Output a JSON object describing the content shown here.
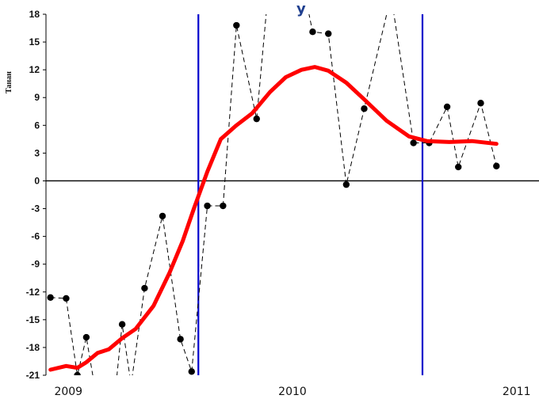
{
  "chart_data": {
    "type": "line",
    "title_fragment": "y",
    "ylabel": "Танан",
    "ylim": [
      -21,
      18
    ],
    "yticks": [
      18,
      15,
      12,
      9,
      6,
      3,
      0,
      -3,
      -6,
      -9,
      -12,
      -15,
      -18,
      -21
    ],
    "ytick_labels": [
      "18",
      "15",
      "12",
      "9",
      "6",
      "3",
      "0",
      "-3",
      "-6",
      "-9",
      "-12",
      "-15",
      "-18",
      "-21"
    ],
    "xlim": [
      2008.9,
      2011.1
    ],
    "xtick_labels": [
      {
        "value": 2009,
        "label": "2009"
      },
      {
        "value": 2010,
        "label": "2010"
      },
      {
        "value": 2011,
        "label": "2011"
      }
    ],
    "vertical_lines": [
      2009.58,
      2010.58
    ],
    "colors": {
      "trend": "#ff0000",
      "vlines": "#0000cc",
      "series": "#000000"
    },
    "series": [
      {
        "style": "dashed-markers",
        "points": [
          [
            2008.92,
            -12.6
          ],
          [
            2008.99,
            -12.7
          ],
          [
            2009.04,
            -21.0
          ],
          [
            2009.08,
            -16.9
          ],
          [
            2009.13,
            -24.0
          ],
          [
            2009.2,
            -25.0
          ],
          [
            2009.24,
            -15.5
          ],
          [
            2009.28,
            -22.0
          ],
          [
            2009.34,
            -11.6
          ],
          [
            2009.42,
            -3.8
          ],
          [
            2009.5,
            -17.1
          ],
          [
            2009.55,
            -20.6
          ],
          [
            2009.62,
            -2.7
          ],
          [
            2009.69,
            -2.7
          ],
          [
            2009.75,
            16.8
          ],
          [
            2009.84,
            6.7
          ],
          [
            2009.89,
            20.0
          ],
          [
            2010.04,
            22.0
          ],
          [
            2010.09,
            16.1
          ],
          [
            2010.16,
            15.9
          ],
          [
            2010.24,
            -0.4
          ],
          [
            2010.32,
            7.8
          ],
          [
            2010.44,
            20.0
          ],
          [
            2010.54,
            4.1
          ],
          [
            2010.61,
            4.1
          ],
          [
            2010.69,
            8.0
          ],
          [
            2010.74,
            1.5
          ],
          [
            2010.84,
            8.4
          ],
          [
            2010.91,
            1.6
          ]
        ]
      },
      {
        "style": "trend",
        "points": [
          [
            2008.92,
            -20.4
          ],
          [
            2008.99,
            -20.0
          ],
          [
            2009.04,
            -20.2
          ],
          [
            2009.08,
            -19.6
          ],
          [
            2009.13,
            -18.6
          ],
          [
            2009.18,
            -18.2
          ],
          [
            2009.24,
            -17.0
          ],
          [
            2009.3,
            -16.0
          ],
          [
            2009.38,
            -13.5
          ],
          [
            2009.45,
            -10.0
          ],
          [
            2009.51,
            -6.5
          ],
          [
            2009.56,
            -3.0
          ],
          [
            2009.62,
            1.0
          ],
          [
            2009.68,
            4.5
          ],
          [
            2009.75,
            6.0
          ],
          [
            2009.82,
            7.3
          ],
          [
            2009.9,
            9.6
          ],
          [
            2009.97,
            11.2
          ],
          [
            2010.04,
            12.0
          ],
          [
            2010.1,
            12.3
          ],
          [
            2010.16,
            11.9
          ],
          [
            2010.24,
            10.6
          ],
          [
            2010.32,
            8.8
          ],
          [
            2010.42,
            6.5
          ],
          [
            2010.52,
            4.8
          ],
          [
            2010.6,
            4.3
          ],
          [
            2010.7,
            4.2
          ],
          [
            2010.8,
            4.3
          ],
          [
            2010.91,
            4.0
          ]
        ]
      }
    ]
  }
}
